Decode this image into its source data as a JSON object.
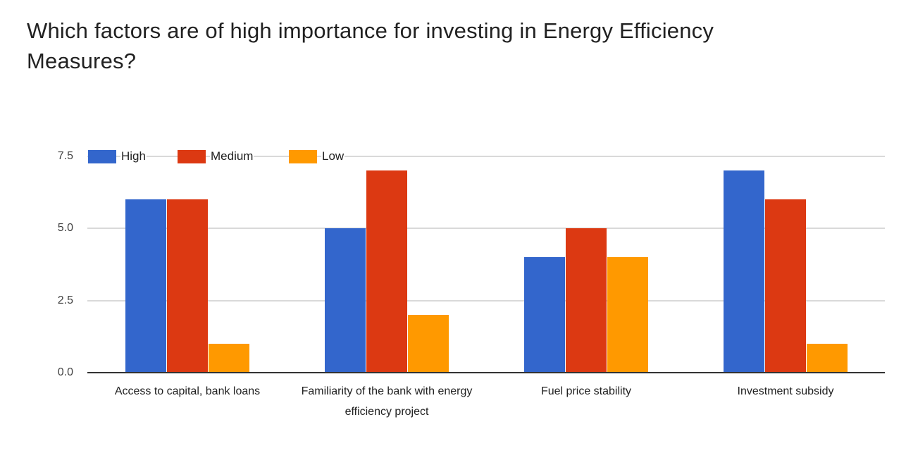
{
  "page": {
    "title_lines": [
      "Which factors are of high importance for investing in Energy Efficiency",
      "Measures?"
    ]
  },
  "chart_data": {
    "type": "bar",
    "title": "Which factors are of high importance for investing in Energy Efficiency Measures?",
    "categories": [
      "Access to capital, bank loans",
      "Familiarity of the bank with energy efficiency project",
      "Fuel price stability",
      "Investment subsidy"
    ],
    "series": [
      {
        "name": "High",
        "color": "#3366CC",
        "values": [
          6,
          5,
          4,
          7
        ]
      },
      {
        "name": "Medium",
        "color": "#DC3912",
        "values": [
          6,
          7,
          5,
          6
        ]
      },
      {
        "name": "Low",
        "color": "#FF9900",
        "values": [
          1,
          2,
          4,
          1
        ]
      }
    ],
    "xlabel": "",
    "ylabel": "",
    "ylim": [
      0,
      7.5
    ],
    "yticks": [
      {
        "value": 0,
        "label": "0.0"
      },
      {
        "value": 2.5,
        "label": "2.5"
      },
      {
        "value": 5,
        "label": "5.0"
      },
      {
        "value": 7.5,
        "label": "7.5"
      }
    ],
    "grid": true,
    "legend_position": "top-left"
  },
  "colors": {
    "grid": "#d9d9d9",
    "axis": "#333333",
    "title_text": "#212121",
    "tick_text": "#404040",
    "category_text": "#212121",
    "legend_text": "#212121",
    "background": "#ffffff"
  }
}
